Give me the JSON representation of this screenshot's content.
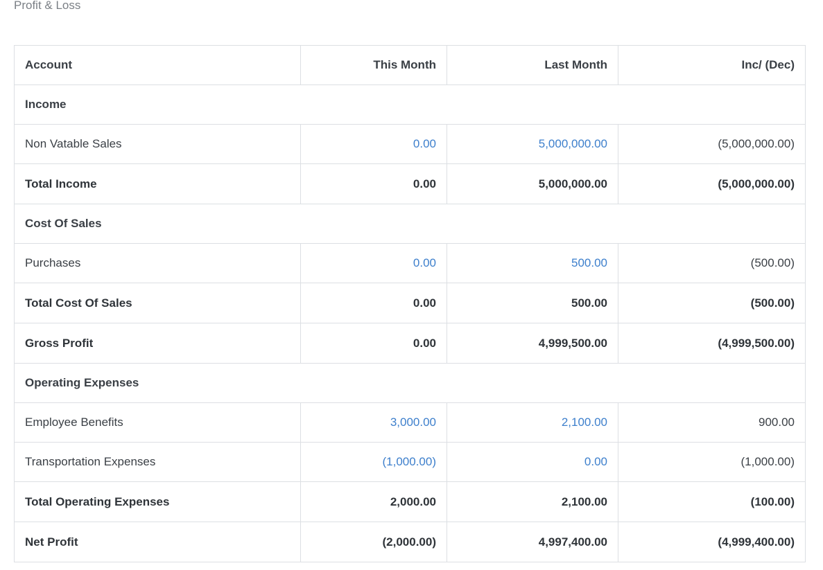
{
  "page": {
    "title": "Profit & Loss"
  },
  "columns": {
    "account": "Account",
    "this_month": "This Month",
    "last_month": "Last Month",
    "inc_dec": "Inc/ (Dec)"
  },
  "rows": {
    "income_header": {
      "label": "Income"
    },
    "non_vatable_sales": {
      "label": "Non Vatable Sales",
      "this_month": "0.00",
      "last_month": "5,000,000.00",
      "inc_dec": "(5,000,000.00)"
    },
    "total_income": {
      "label": "Total Income",
      "this_month": "0.00",
      "last_month": "5,000,000.00",
      "inc_dec": "(5,000,000.00)"
    },
    "cost_of_sales_header": {
      "label": "Cost Of Sales"
    },
    "purchases": {
      "label": "Purchases",
      "this_month": "0.00",
      "last_month": "500.00",
      "inc_dec": "(500.00)"
    },
    "total_cost_of_sales": {
      "label": "Total Cost Of Sales",
      "this_month": "0.00",
      "last_month": "500.00",
      "inc_dec": "(500.00)"
    },
    "gross_profit": {
      "label": "Gross Profit",
      "this_month": "0.00",
      "last_month": "4,999,500.00",
      "inc_dec": "(4,999,500.00)"
    },
    "operating_expenses_header": {
      "label": "Operating Expenses"
    },
    "employee_benefits": {
      "label": "Employee Benefits",
      "this_month": "3,000.00",
      "last_month": "2,100.00",
      "inc_dec": "900.00"
    },
    "transportation_expenses": {
      "label": "Transportation Expenses",
      "this_month": "(1,000.00)",
      "last_month": "0.00",
      "inc_dec": "(1,000.00)"
    },
    "total_operating_expenses": {
      "label": "Total Operating Expenses",
      "this_month": "2,000.00",
      "last_month": "2,100.00",
      "inc_dec": "(100.00)"
    },
    "net_profit": {
      "label": "Net Profit",
      "this_month": "(2,000.00)",
      "last_month": "4,997,400.00",
      "inc_dec": "(4,999,400.00)"
    }
  },
  "colors": {
    "link": "#3d7fcc",
    "border": "#dcdfe3",
    "text": "#3a3f45"
  }
}
